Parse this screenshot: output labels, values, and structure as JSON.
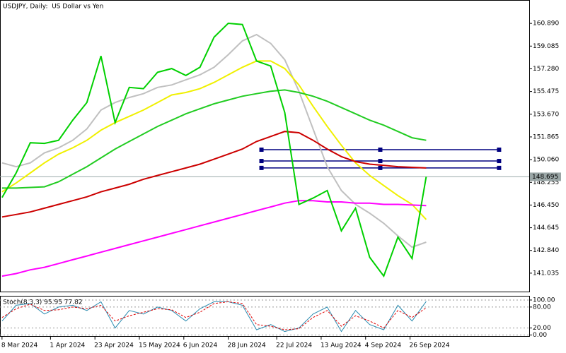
{
  "chart_data": [
    {
      "type": "line",
      "title": "USDJPY, Daily:  US Dollar vs Yen",
      "x": [
        "2024-03-08",
        "2024-03-15",
        "2024-03-22",
        "2024-03-29",
        "2024-04-05",
        "2024-04-12",
        "2024-04-19",
        "2024-04-26",
        "2024-05-03",
        "2024-05-10",
        "2024-05-17",
        "2024-05-24",
        "2024-05-31",
        "2024-06-07",
        "2024-06-14",
        "2024-06-21",
        "2024-06-28",
        "2024-07-05",
        "2024-07-12",
        "2024-07-19",
        "2024-07-26",
        "2024-08-02",
        "2024-08-09",
        "2024-08-16",
        "2024-08-23",
        "2024-08-30",
        "2024-09-06",
        "2024-09-13",
        "2024-09-20",
        "2024-09-27",
        "2024-10-04"
      ],
      "series": [
        {
          "color": "#c0c0c0",
          "values": [
            149.8,
            149.5,
            149.8,
            150.6,
            151.0,
            151.6,
            152.5,
            154.0,
            154.6,
            155.0,
            155.3,
            155.8,
            156.0,
            156.4,
            156.8,
            157.4,
            158.4,
            159.5,
            160.0,
            159.3,
            158.0,
            155.5,
            152.5,
            149.5,
            147.6,
            146.5,
            145.8,
            145.0,
            144.0,
            143.1,
            143.5
          ]
        },
        {
          "color": "#f0f000",
          "values": [
            147.5,
            148.2,
            149.0,
            149.8,
            150.5,
            151.0,
            151.6,
            152.4,
            153.0,
            153.5,
            154.0,
            154.6,
            155.2,
            155.4,
            155.7,
            156.2,
            156.8,
            157.4,
            157.9,
            157.9,
            157.3,
            156.0,
            154.3,
            152.7,
            151.2,
            149.8,
            148.8,
            148.0,
            147.2,
            146.5,
            145.3
          ]
        },
        {
          "color": "#22cc22",
          "values": [
            147.8,
            147.8,
            147.85,
            147.9,
            148.3,
            148.9,
            149.5,
            150.2,
            150.9,
            151.5,
            152.1,
            152.7,
            153.2,
            153.7,
            154.1,
            154.5,
            154.8,
            155.1,
            155.3,
            155.5,
            155.6,
            155.4,
            155.1,
            154.7,
            154.2,
            153.7,
            153.2,
            152.8,
            152.3,
            151.8,
            151.6
          ]
        },
        {
          "color": "#cc0000",
          "values": [
            145.5,
            145.7,
            145.9,
            146.2,
            146.5,
            146.8,
            147.1,
            147.5,
            147.8,
            148.1,
            148.5,
            148.8,
            149.1,
            149.4,
            149.7,
            150.1,
            150.5,
            150.9,
            151.5,
            151.9,
            152.3,
            152.2,
            151.6,
            150.9,
            150.3,
            149.9,
            149.7,
            149.6,
            149.5,
            149.45,
            149.4
          ]
        },
        {
          "color": "#ff00ff",
          "values": [
            140.8,
            141.0,
            141.3,
            141.5,
            141.8,
            142.1,
            142.4,
            142.7,
            143.0,
            143.3,
            143.6,
            143.9,
            144.2,
            144.5,
            144.8,
            145.1,
            145.4,
            145.7,
            146.0,
            146.3,
            146.6,
            146.8,
            146.8,
            146.7,
            146.7,
            146.6,
            146.6,
            146.5,
            146.5,
            146.45,
            146.4
          ]
        },
        {
          "color": "#00d000",
          "values": [
            147.05,
            149.0,
            151.4,
            151.35,
            151.6,
            153.2,
            154.6,
            158.3,
            153.0,
            155.8,
            155.7,
            157.0,
            157.3,
            156.75,
            157.4,
            159.8,
            160.9,
            160.8,
            157.9,
            157.5,
            153.8,
            146.5,
            147.0,
            147.6,
            144.4,
            146.2,
            142.3,
            140.8,
            143.9,
            142.2,
            148.7
          ]
        }
      ],
      "levels": [
        150.85,
        149.95,
        149.4
      ],
      "levels_color": "#000080",
      "current_price": 148.695,
      "xlim": [
        "2024-03-07",
        "2024-11-24"
      ],
      "xticks": [
        {
          "value": "2024-03-08",
          "label": "8 Mar 2024"
        },
        {
          "value": "2024-04-01",
          "label": "1 Apr 2024"
        },
        {
          "value": "2024-04-23",
          "label": "23 Apr 2024"
        },
        {
          "value": "2024-05-15",
          "label": "15 May 2024"
        },
        {
          "value": "2024-06-06",
          "label": "6 Jun 2024"
        },
        {
          "value": "2024-06-28",
          "label": "28 Jun 2024"
        },
        {
          "value": "2024-07-22",
          "label": "22 Jul 2024"
        },
        {
          "value": "2024-08-13",
          "label": "13 Aug 2024"
        },
        {
          "value": "2024-09-04",
          "label": "4 Sep 2024"
        },
        {
          "value": "2024-09-26",
          "label": "26 Sep 2024"
        }
      ],
      "ylim": [
        139.57,
        162.75
      ],
      "yticks": [
        {
          "value": 160.89,
          "label": "160.890"
        },
        159.085,
        {
          "value": 157.28,
          "label": "157.280"
        },
        155.475,
        {
          "value": 153.67,
          "label": "153.670"
        },
        151.865,
        {
          "value": 150.06,
          "label": "150.060"
        },
        148.255,
        {
          "value": 146.45,
          "label": "146.450"
        },
        144.645,
        {
          "value": 142.84,
          "label": "142.840"
        },
        141.035
      ]
    },
    {
      "type": "line",
      "title": "Stoch(8,3,3) 95.95 77.82",
      "series": [
        {
          "color": "#2a8bb0",
          "values": [
            40,
            85,
            90,
            60,
            80,
            85,
            70,
            95,
            20,
            70,
            60,
            80,
            70,
            40,
            75,
            95,
            95,
            85,
            15,
            30,
            10,
            20,
            60,
            80,
            10,
            70,
            30,
            15,
            85,
            40,
            96
          ],
          "dash": false
        },
        {
          "color": "#e00000",
          "values": [
            50,
            75,
            88,
            70,
            72,
            80,
            75,
            85,
            40,
            55,
            65,
            75,
            72,
            50,
            65,
            90,
            95,
            90,
            30,
            25,
            15,
            18,
            50,
            70,
            25,
            55,
            40,
            20,
            70,
            50,
            78
          ],
          "dash": true
        }
      ],
      "ylim": [
        -5,
        110
      ],
      "yticks": [
        {
          "value": 100,
          "label": "100.00"
        },
        {
          "value": 80,
          "label": "80.00"
        },
        {
          "value": 20,
          "label": "20.00"
        },
        {
          "value": 0,
          "label": "0.00"
        }
      ]
    }
  ]
}
